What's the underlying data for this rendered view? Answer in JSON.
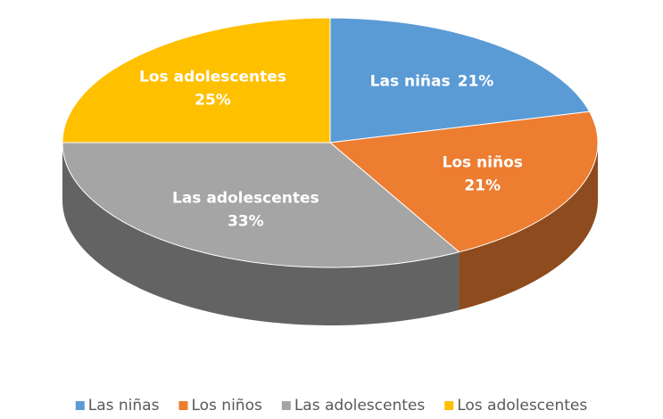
{
  "chart_data": {
    "type": "pie3d",
    "categories": [
      "Las niñas",
      "Los niños",
      "Las adolescentes",
      "Los adolescentes"
    ],
    "values": [
      21,
      21,
      33,
      25
    ],
    "value_labels": [
      "21%",
      "21%",
      "33%",
      "25%"
    ],
    "colors": [
      "#5b9bd5",
      "#ed7d31",
      "#a5a5a5",
      "#ffc000"
    ],
    "legend": "bottom"
  }
}
